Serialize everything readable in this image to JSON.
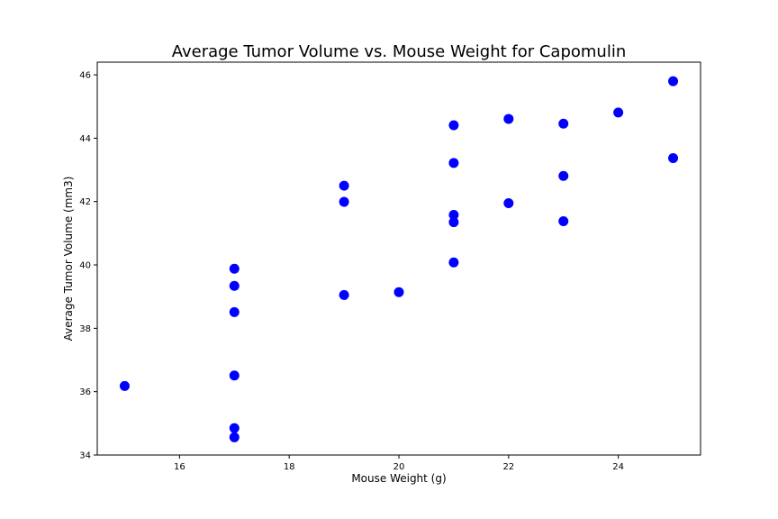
{
  "chart_data": {
    "type": "scatter",
    "title": "Average Tumor Volume vs. Mouse Weight for Capomulin",
    "xlabel": "Mouse Weight (g)",
    "ylabel": "Average Tumor Volume (mm3)",
    "xlim": [
      14.5,
      25.5
    ],
    "ylim": [
      34.0,
      46.4
    ],
    "xticks": [
      16,
      18,
      20,
      22,
      24
    ],
    "yticks": [
      34,
      36,
      38,
      40,
      42,
      44,
      46
    ],
    "grid": false,
    "legend": "none",
    "marker_color": "#0000ff",
    "points": [
      {
        "x": 15,
        "y": 36.18
      },
      {
        "x": 17,
        "y": 39.88
      },
      {
        "x": 17,
        "y": 39.34
      },
      {
        "x": 17,
        "y": 38.51
      },
      {
        "x": 17,
        "y": 36.51
      },
      {
        "x": 17,
        "y": 34.85
      },
      {
        "x": 17,
        "y": 34.56
      },
      {
        "x": 19,
        "y": 42.5
      },
      {
        "x": 19,
        "y": 41.99
      },
      {
        "x": 19,
        "y": 39.05
      },
      {
        "x": 20,
        "y": 39.14
      },
      {
        "x": 21,
        "y": 44.41
      },
      {
        "x": 21,
        "y": 43.22
      },
      {
        "x": 21,
        "y": 41.58
      },
      {
        "x": 21,
        "y": 41.35
      },
      {
        "x": 21,
        "y": 40.08
      },
      {
        "x": 22,
        "y": 44.61
      },
      {
        "x": 22,
        "y": 41.95
      },
      {
        "x": 23,
        "y": 44.46
      },
      {
        "x": 23,
        "y": 42.81
      },
      {
        "x": 23,
        "y": 41.38
      },
      {
        "x": 24,
        "y": 44.81
      },
      {
        "x": 25,
        "y": 45.8
      },
      {
        "x": 25,
        "y": 43.37
      }
    ]
  }
}
